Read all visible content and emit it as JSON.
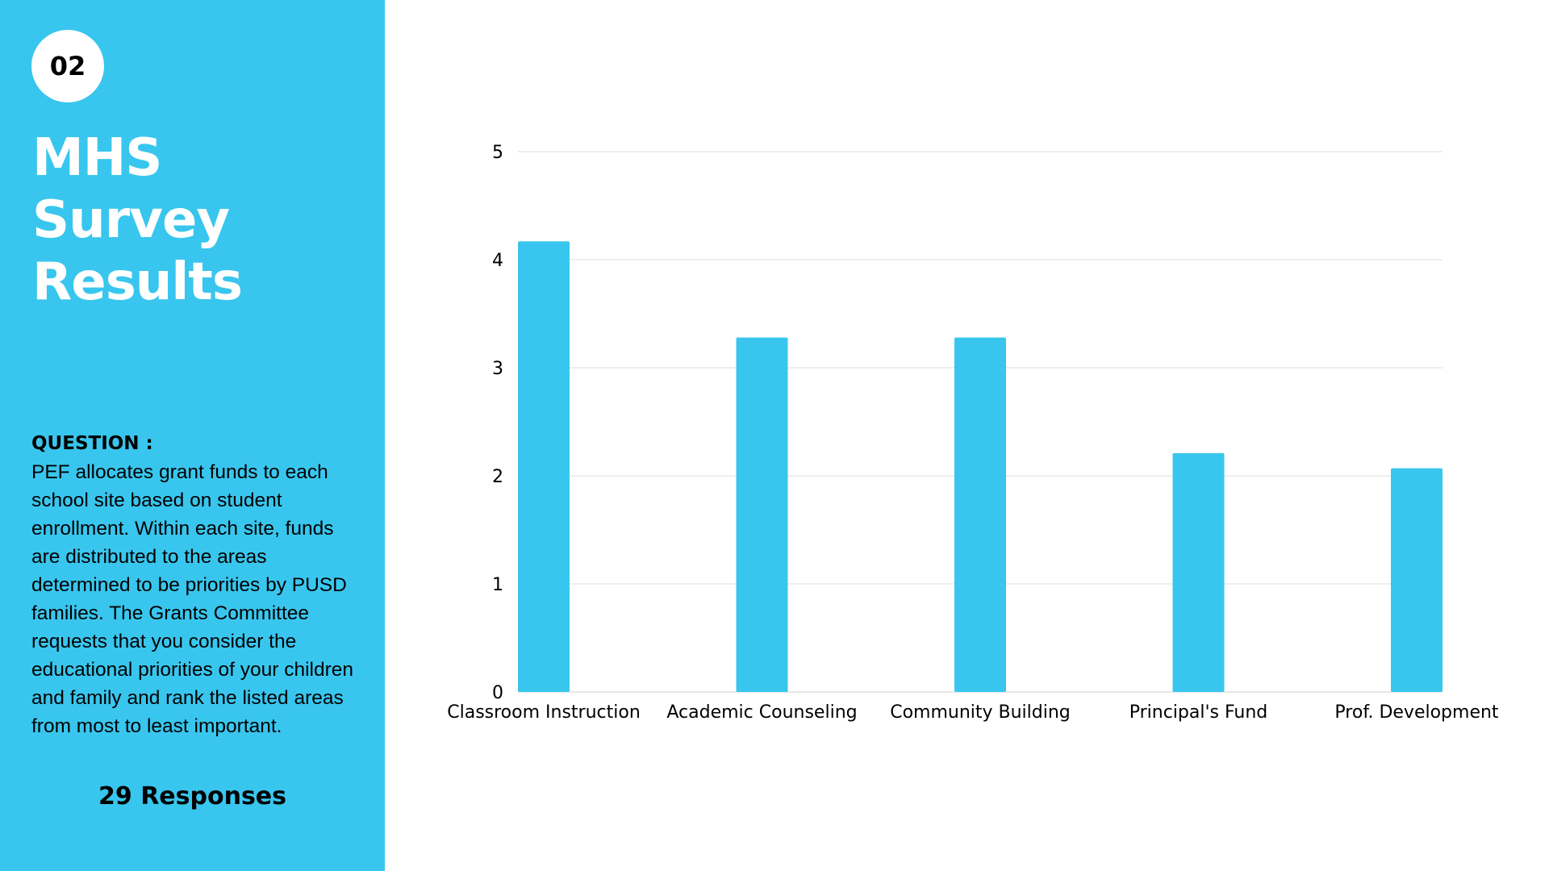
{
  "sidebar": {
    "badge": "02",
    "title_lines": [
      "MHS",
      "Survey",
      "Results"
    ],
    "question_label": "QUESTION :",
    "question_text": "PEF allocates grant funds to each school site based on student enrollment. Within each site, funds are distributed to the areas determined to be priorities by PUSD families. The Grants Committee requests that you consider the educational priorities of your children and family and rank the listed areas from most to least important.",
    "responses": "29 Responses"
  },
  "colors": {
    "accent": "#38c6ee",
    "bar": "#38c6ee",
    "grid": "#dddddd",
    "text": "#000000"
  },
  "chart_data": {
    "type": "bar",
    "categories": [
      "Classroom Instruction",
      "Academic Counseling",
      "Community Building",
      "Principal's Fund",
      "Prof. Development"
    ],
    "values": [
      4.17,
      3.28,
      3.28,
      2.21,
      2.07
    ],
    "yticks": [
      "0",
      "1",
      "2",
      "3",
      "4",
      "5"
    ],
    "ylim": [
      0,
      5
    ],
    "grid": true,
    "legend": false
  }
}
